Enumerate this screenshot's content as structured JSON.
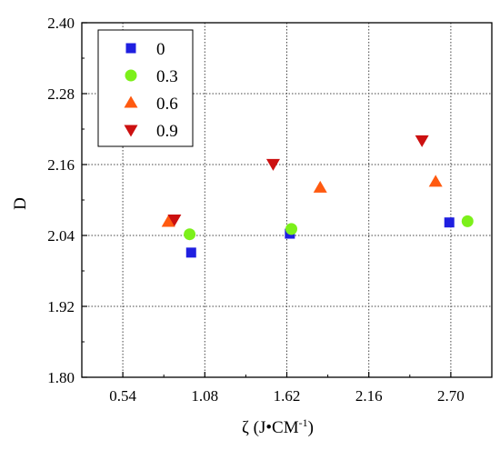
{
  "chart_data": {
    "type": "scatter",
    "xlabel_main": "ζ (J•CM",
    "xlabel_sup": "-1",
    "xlabel_end": ")",
    "ylabel": "D",
    "xlim": [
      0.27,
      2.97
    ],
    "ylim": [
      1.8,
      2.4
    ],
    "xticks": [
      0.54,
      1.08,
      1.62,
      2.16,
      2.7
    ],
    "xtick_labels": [
      "0.54",
      "1.08",
      "1.62",
      "2.16",
      "2.70"
    ],
    "yticks": [
      1.8,
      1.92,
      2.04,
      2.16,
      2.28,
      2.4
    ],
    "ytick_labels": [
      "1.80",
      "1.92",
      "2.04",
      "2.16",
      "2.28",
      "2.40"
    ],
    "grid": true,
    "legend_position": "top-left",
    "series": [
      {
        "name": "0",
        "marker": "square",
        "color": "#1f1fe0",
        "x": [
          0.99,
          1.64,
          2.69
        ],
        "y": [
          2.011,
          2.043,
          2.062
        ]
      },
      {
        "name": "0.3",
        "marker": "circle",
        "color": "#7cf01a",
        "x": [
          0.98,
          1.65,
          2.81
        ],
        "y": [
          2.042,
          2.051,
          2.064
        ]
      },
      {
        "name": "0.6",
        "marker": "triangle-up",
        "color": "#ff5a10",
        "x": [
          0.84,
          1.84,
          2.6
        ],
        "y": [
          2.063,
          2.121,
          2.131
        ]
      },
      {
        "name": "0.9",
        "marker": "triangle-down",
        "color": "#cc1010",
        "x": [
          0.88,
          1.53,
          2.51
        ],
        "y": [
          2.067,
          2.161,
          2.201
        ]
      }
    ]
  }
}
